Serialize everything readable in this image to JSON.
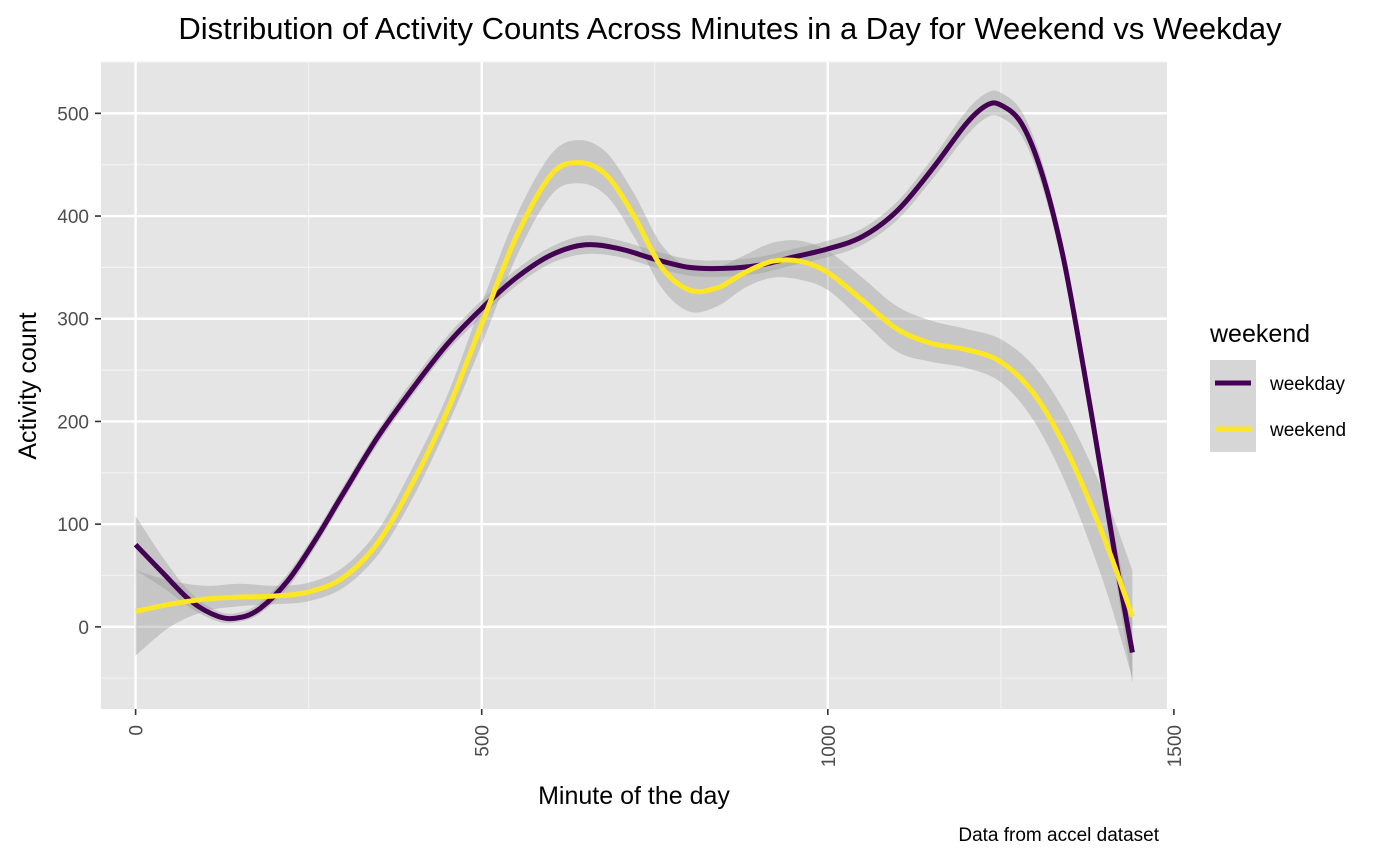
{
  "chart_data": {
    "type": "line",
    "title": "Distribution of Activity Counts Across Minutes in a Day for Weekend vs Weekday",
    "xlabel": "Minute of the day",
    "ylabel": "Activity count",
    "caption": "Data from accel dataset",
    "xlim": [
      -50,
      1490
    ],
    "ylim": [
      -80,
      550
    ],
    "x_ticks": [
      0,
      500,
      1000,
      1500
    ],
    "y_ticks": [
      0,
      100,
      200,
      300,
      400,
      500
    ],
    "grid": true,
    "legend": {
      "title": "weekend",
      "position": "right"
    },
    "series": [
      {
        "name": "weekday",
        "color": "#440154",
        "points": [
          [
            0,
            80
          ],
          [
            40,
            52
          ],
          [
            80,
            25
          ],
          [
            120,
            10
          ],
          [
            150,
            9
          ],
          [
            180,
            18
          ],
          [
            220,
            45
          ],
          [
            260,
            85
          ],
          [
            300,
            130
          ],
          [
            350,
            185
          ],
          [
            400,
            232
          ],
          [
            450,
            275
          ],
          [
            500,
            310
          ],
          [
            550,
            340
          ],
          [
            600,
            362
          ],
          [
            650,
            372
          ],
          [
            700,
            368
          ],
          [
            750,
            358
          ],
          [
            800,
            350
          ],
          [
            850,
            349
          ],
          [
            900,
            352
          ],
          [
            950,
            360
          ],
          [
            1000,
            368
          ],
          [
            1050,
            380
          ],
          [
            1100,
            405
          ],
          [
            1150,
            445
          ],
          [
            1200,
            490
          ],
          [
            1230,
            508
          ],
          [
            1250,
            508
          ],
          [
            1280,
            490
          ],
          [
            1310,
            440
          ],
          [
            1340,
            360
          ],
          [
            1370,
            250
          ],
          [
            1400,
            130
          ],
          [
            1420,
            50
          ],
          [
            1440,
            -25
          ]
        ],
        "ci_lower": [
          [
            0,
            55
          ],
          [
            40,
            38
          ],
          [
            80,
            18
          ],
          [
            120,
            5
          ],
          [
            150,
            5
          ],
          [
            180,
            13
          ],
          [
            220,
            38
          ],
          [
            260,
            78
          ],
          [
            300,
            123
          ],
          [
            350,
            178
          ],
          [
            400,
            225
          ],
          [
            450,
            268
          ],
          [
            500,
            302
          ],
          [
            550,
            332
          ],
          [
            600,
            354
          ],
          [
            650,
            363
          ],
          [
            700,
            360
          ],
          [
            750,
            350
          ],
          [
            800,
            342
          ],
          [
            850,
            341
          ],
          [
            900,
            344
          ],
          [
            950,
            352
          ],
          [
            1000,
            360
          ],
          [
            1050,
            372
          ],
          [
            1100,
            396
          ],
          [
            1150,
            435
          ],
          [
            1200,
            478
          ],
          [
            1230,
            496
          ],
          [
            1250,
            496
          ],
          [
            1280,
            478
          ],
          [
            1310,
            428
          ],
          [
            1340,
            348
          ],
          [
            1370,
            237
          ],
          [
            1400,
            115
          ],
          [
            1420,
            30
          ],
          [
            1440,
            -55
          ]
        ],
        "ci_upper": [
          [
            0,
            108
          ],
          [
            40,
            67
          ],
          [
            80,
            33
          ],
          [
            120,
            15
          ],
          [
            150,
            14
          ],
          [
            180,
            24
          ],
          [
            220,
            52
          ],
          [
            260,
            92
          ],
          [
            300,
            137
          ],
          [
            350,
            192
          ],
          [
            400,
            240
          ],
          [
            450,
            283
          ],
          [
            500,
            318
          ],
          [
            550,
            348
          ],
          [
            600,
            370
          ],
          [
            650,
            381
          ],
          [
            700,
            376
          ],
          [
            750,
            366
          ],
          [
            800,
            358
          ],
          [
            850,
            357
          ],
          [
            900,
            360
          ],
          [
            950,
            368
          ],
          [
            1000,
            376
          ],
          [
            1050,
            388
          ],
          [
            1100,
            414
          ],
          [
            1150,
            455
          ],
          [
            1200,
            502
          ],
          [
            1230,
            520
          ],
          [
            1250,
            520
          ],
          [
            1280,
            502
          ],
          [
            1310,
            452
          ],
          [
            1340,
            372
          ],
          [
            1370,
            263
          ],
          [
            1400,
            145
          ],
          [
            1420,
            70
          ],
          [
            1440,
            5
          ]
        ]
      },
      {
        "name": "weekend",
        "color": "#fde725",
        "points": [
          [
            0,
            15
          ],
          [
            50,
            22
          ],
          [
            100,
            27
          ],
          [
            150,
            29
          ],
          [
            200,
            30
          ],
          [
            250,
            34
          ],
          [
            300,
            48
          ],
          [
            350,
            82
          ],
          [
            400,
            140
          ],
          [
            450,
            210
          ],
          [
            500,
            295
          ],
          [
            550,
            380
          ],
          [
            600,
            440
          ],
          [
            640,
            452
          ],
          [
            680,
            440
          ],
          [
            720,
            400
          ],
          [
            760,
            350
          ],
          [
            800,
            328
          ],
          [
            840,
            330
          ],
          [
            880,
            345
          ],
          [
            920,
            356
          ],
          [
            960,
            356
          ],
          [
            1000,
            345
          ],
          [
            1050,
            318
          ],
          [
            1100,
            290
          ],
          [
            1150,
            276
          ],
          [
            1200,
            270
          ],
          [
            1250,
            258
          ],
          [
            1300,
            225
          ],
          [
            1350,
            165
          ],
          [
            1400,
            85
          ],
          [
            1440,
            10
          ]
        ],
        "ci_lower": [
          [
            0,
            -28
          ],
          [
            50,
            0
          ],
          [
            100,
            15
          ],
          [
            150,
            20
          ],
          [
            200,
            22
          ],
          [
            250,
            25
          ],
          [
            300,
            38
          ],
          [
            350,
            70
          ],
          [
            400,
            125
          ],
          [
            450,
            195
          ],
          [
            500,
            275
          ],
          [
            550,
            360
          ],
          [
            600,
            420
          ],
          [
            640,
            432
          ],
          [
            680,
            420
          ],
          [
            720,
            380
          ],
          [
            760,
            330
          ],
          [
            800,
            307
          ],
          [
            840,
            312
          ],
          [
            880,
            330
          ],
          [
            920,
            340
          ],
          [
            960,
            338
          ],
          [
            1000,
            328
          ],
          [
            1050,
            298
          ],
          [
            1100,
            268
          ],
          [
            1150,
            258
          ],
          [
            1200,
            252
          ],
          [
            1250,
            238
          ],
          [
            1300,
            198
          ],
          [
            1350,
            130
          ],
          [
            1400,
            40
          ],
          [
            1440,
            -50
          ]
        ],
        "ci_upper": [
          [
            0,
            55
          ],
          [
            50,
            45
          ],
          [
            100,
            40
          ],
          [
            150,
            42
          ],
          [
            200,
            40
          ],
          [
            250,
            43
          ],
          [
            300,
            58
          ],
          [
            350,
            94
          ],
          [
            400,
            155
          ],
          [
            450,
            225
          ],
          [
            500,
            315
          ],
          [
            550,
            400
          ],
          [
            600,
            460
          ],
          [
            640,
            474
          ],
          [
            680,
            462
          ],
          [
            720,
            422
          ],
          [
            760,
            372
          ],
          [
            800,
            350
          ],
          [
            840,
            350
          ],
          [
            880,
            362
          ],
          [
            920,
            374
          ],
          [
            960,
            376
          ],
          [
            1000,
            366
          ],
          [
            1050,
            340
          ],
          [
            1100,
            312
          ],
          [
            1150,
            298
          ],
          [
            1200,
            290
          ],
          [
            1250,
            280
          ],
          [
            1300,
            252
          ],
          [
            1350,
            200
          ],
          [
            1400,
            128
          ],
          [
            1440,
            55
          ]
        ]
      }
    ]
  }
}
